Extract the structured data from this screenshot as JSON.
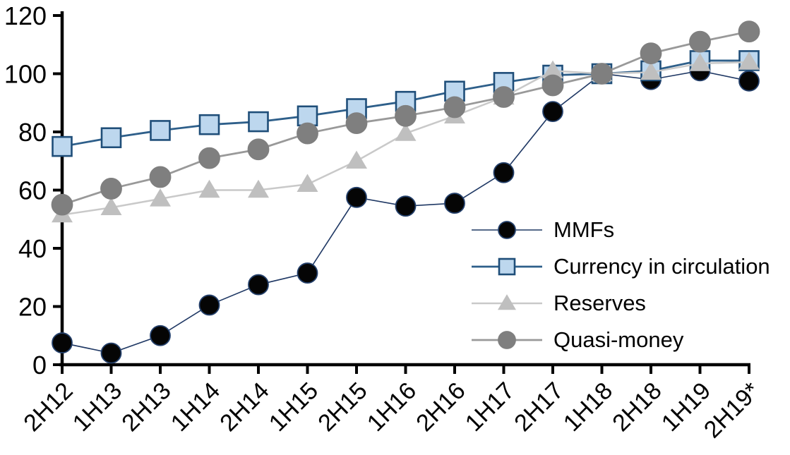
{
  "chart_data": {
    "type": "line",
    "title": "",
    "xlabel": "",
    "ylabel": "",
    "categories": [
      "2H12",
      "1H13",
      "2H13",
      "1H14",
      "2H14",
      "1H15",
      "2H15",
      "1H16",
      "2H16",
      "1H17",
      "2H17",
      "1H18",
      "2H18",
      "1H19",
      "2H19*"
    ],
    "series": [
      {
        "name": "MMFs",
        "marker": "circle",
        "marker_fill": "#050505",
        "marker_stroke": "#24406B",
        "line_color": "#1F3864",
        "line_width": 1.6,
        "marker_size": 28,
        "values": [
          7.5,
          4,
          10,
          20.5,
          27.5,
          31.5,
          57.5,
          54.5,
          55.5,
          66,
          87,
          100,
          98,
          101,
          97.5
        ]
      },
      {
        "name": "Currency in circulation",
        "marker": "square",
        "marker_fill": "#BDD7EE",
        "marker_stroke": "#1F4E79",
        "line_color": "#2E5F8A",
        "line_width": 2.8,
        "marker_size": 27,
        "values": [
          75,
          78,
          80.5,
          82.5,
          83.5,
          85.5,
          88,
          90.5,
          94,
          97,
          99.5,
          100,
          101,
          104.5,
          104.5
        ]
      },
      {
        "name": "Reserves",
        "marker": "triangle",
        "marker_fill": "#BFBFBF",
        "marker_stroke": "#BFBFBF",
        "line_color": "#C9C9C9",
        "line_width": 2.5,
        "marker_size": 30,
        "values": [
          51.5,
          54,
          57,
          60,
          60,
          62,
          70,
          79.5,
          85.5,
          92,
          101,
          100,
          100.5,
          103.5,
          104
        ]
      },
      {
        "name": "Quasi-money",
        "marker": "circle",
        "marker_fill": "#7F7F7F",
        "marker_stroke": "#7F7F7F",
        "line_color": "#999999",
        "line_width": 2.8,
        "marker_size": 29,
        "values": [
          55,
          60.5,
          64.5,
          71,
          74,
          79.5,
          83,
          85.5,
          88.5,
          92,
          96,
          100,
          107,
          111,
          114.5
        ]
      }
    ],
    "ylim": [
      0,
      120
    ],
    "yticks": [
      0,
      20,
      40,
      60,
      80,
      100,
      120
    ],
    "grid": false,
    "legend_position": "inside-right"
  }
}
